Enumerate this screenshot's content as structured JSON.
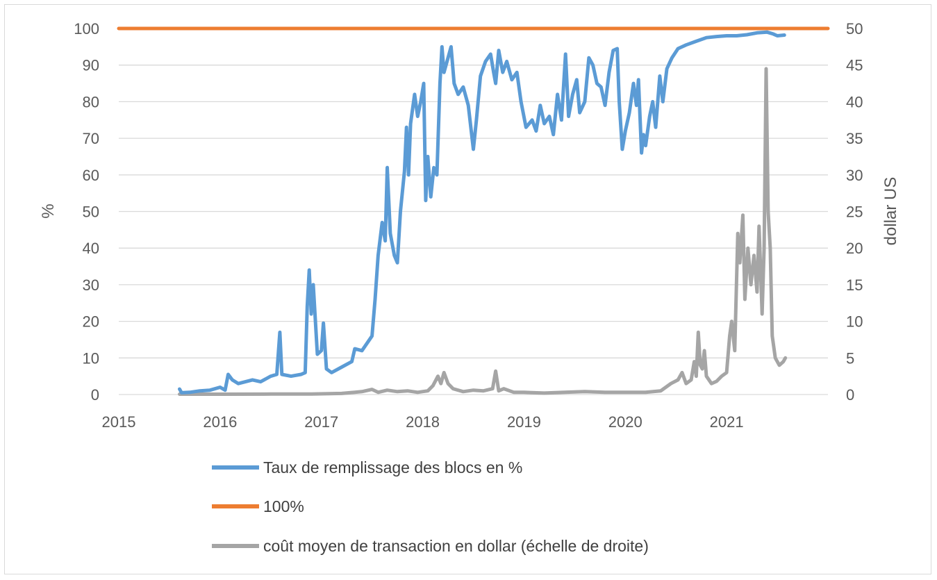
{
  "chart_data": {
    "type": "line",
    "xlim": [
      2015,
      2022
    ],
    "x_ticks": [
      "2015",
      "2016",
      "2017",
      "2018",
      "2019",
      "2020",
      "2021"
    ],
    "y_left": {
      "label": "%",
      "ylim": [
        0,
        100
      ],
      "ticks": [
        "0",
        "10",
        "20",
        "30",
        "40",
        "50",
        "60",
        "70",
        "80",
        "90",
        "100"
      ]
    },
    "y_right": {
      "label": "dollar US",
      "ylim": [
        0,
        50
      ],
      "ticks": [
        "0",
        "5",
        "10",
        "15",
        "20",
        "25",
        "30",
        "35",
        "40",
        "45",
        "50"
      ]
    },
    "grid": true,
    "legend_position": "bottom",
    "series": [
      {
        "name": "Taux de remplissage des blocs en %",
        "axis": "left",
        "color": "#5b9bd5",
        "points": [
          [
            2015.6,
            1.5
          ],
          [
            2015.62,
            0.5
          ],
          [
            2015.7,
            0.6
          ],
          [
            2015.8,
            1.0
          ],
          [
            2015.9,
            1.2
          ],
          [
            2016.0,
            2.0
          ],
          [
            2016.05,
            1.2
          ],
          [
            2016.08,
            5.5
          ],
          [
            2016.12,
            4.0
          ],
          [
            2016.18,
            3.0
          ],
          [
            2016.25,
            3.5
          ],
          [
            2016.32,
            4.0
          ],
          [
            2016.4,
            3.5
          ],
          [
            2016.5,
            5.0
          ],
          [
            2016.56,
            5.5
          ],
          [
            2016.59,
            17.0
          ],
          [
            2016.61,
            5.5
          ],
          [
            2016.7,
            5.0
          ],
          [
            2016.8,
            5.5
          ],
          [
            2016.84,
            6.0
          ],
          [
            2016.86,
            24.0
          ],
          [
            2016.88,
            34.0
          ],
          [
            2016.9,
            22.0
          ],
          [
            2016.92,
            30.0
          ],
          [
            2016.96,
            11.0
          ],
          [
            2017.0,
            12.0
          ],
          [
            2017.02,
            19.5
          ],
          [
            2017.05,
            7.0
          ],
          [
            2017.1,
            6.0
          ],
          [
            2017.2,
            7.5
          ],
          [
            2017.3,
            9.0
          ],
          [
            2017.33,
            12.5
          ],
          [
            2017.4,
            12.0
          ],
          [
            2017.5,
            16.0
          ],
          [
            2017.53,
            26.0
          ],
          [
            2017.56,
            38.0
          ],
          [
            2017.6,
            47.0
          ],
          [
            2017.63,
            42.0
          ],
          [
            2017.65,
            62.0
          ],
          [
            2017.68,
            44.0
          ],
          [
            2017.72,
            38.0
          ],
          [
            2017.75,
            36.0
          ],
          [
            2017.78,
            50.0
          ],
          [
            2017.82,
            61.0
          ],
          [
            2017.84,
            73.0
          ],
          [
            2017.86,
            60.0
          ],
          [
            2017.88,
            74.0
          ],
          [
            2017.92,
            82.0
          ],
          [
            2017.95,
            76.0
          ],
          [
            2017.98,
            80.0
          ],
          [
            2018.01,
            85.0
          ],
          [
            2018.03,
            53.0
          ],
          [
            2018.05,
            65.0
          ],
          [
            2018.08,
            54.0
          ],
          [
            2018.11,
            62.0
          ],
          [
            2018.14,
            60.0
          ],
          [
            2018.17,
            85.0
          ],
          [
            2018.19,
            95.0
          ],
          [
            2018.21,
            88.0
          ],
          [
            2018.24,
            91.0
          ],
          [
            2018.28,
            95.0
          ],
          [
            2018.31,
            85.0
          ],
          [
            2018.35,
            82.0
          ],
          [
            2018.4,
            84.0
          ],
          [
            2018.45,
            79.0
          ],
          [
            2018.5,
            67.0
          ],
          [
            2018.53,
            75.0
          ],
          [
            2018.57,
            87.0
          ],
          [
            2018.62,
            91.0
          ],
          [
            2018.67,
            93.0
          ],
          [
            2018.7,
            88.0
          ],
          [
            2018.72,
            85.0
          ],
          [
            2018.75,
            94.0
          ],
          [
            2018.79,
            88.0
          ],
          [
            2018.83,
            91.0
          ],
          [
            2018.88,
            86.0
          ],
          [
            2018.93,
            88.0
          ],
          [
            2018.97,
            80.0
          ],
          [
            2019.02,
            73.0
          ],
          [
            2019.08,
            75.0
          ],
          [
            2019.12,
            72.0
          ],
          [
            2019.16,
            79.0
          ],
          [
            2019.2,
            74.0
          ],
          [
            2019.25,
            76.0
          ],
          [
            2019.29,
            71.0
          ],
          [
            2019.33,
            82.0
          ],
          [
            2019.37,
            75.0
          ],
          [
            2019.41,
            93.0
          ],
          [
            2019.44,
            76.0
          ],
          [
            2019.48,
            82.0
          ],
          [
            2019.52,
            86.0
          ],
          [
            2019.55,
            77.0
          ],
          [
            2019.6,
            80.0
          ],
          [
            2019.64,
            92.0
          ],
          [
            2019.68,
            90.0
          ],
          [
            2019.72,
            85.0
          ],
          [
            2019.76,
            84.0
          ],
          [
            2019.8,
            79.0
          ],
          [
            2019.84,
            88.0
          ],
          [
            2019.88,
            94.0
          ],
          [
            2019.92,
            94.5
          ],
          [
            2019.94,
            80.0
          ],
          [
            2019.97,
            67.0
          ],
          [
            2020.0,
            72.0
          ],
          [
            2020.04,
            77.0
          ],
          [
            2020.08,
            85.0
          ],
          [
            2020.11,
            79.0
          ],
          [
            2020.13,
            86.0
          ],
          [
            2020.16,
            66.0
          ],
          [
            2020.18,
            71.0
          ],
          [
            2020.2,
            68.0
          ],
          [
            2020.24,
            76.0
          ],
          [
            2020.27,
            80.0
          ],
          [
            2020.3,
            73.0
          ],
          [
            2020.34,
            87.0
          ],
          [
            2020.37,
            80.0
          ],
          [
            2020.41,
            89.0
          ],
          [
            2020.46,
            92.0
          ],
          [
            2020.52,
            94.5
          ],
          [
            2020.6,
            95.5
          ],
          [
            2020.7,
            96.5
          ],
          [
            2020.8,
            97.5
          ],
          [
            2020.9,
            97.8
          ],
          [
            2021.0,
            98.0
          ],
          [
            2021.1,
            98.0
          ],
          [
            2021.2,
            98.3
          ],
          [
            2021.3,
            98.8
          ],
          [
            2021.4,
            99.0
          ],
          [
            2021.46,
            98.5
          ],
          [
            2021.5,
            98.0
          ],
          [
            2021.57,
            98.2
          ]
        ]
      },
      {
        "name": "100%",
        "axis": "left",
        "color": "#ed7d31",
        "points": [
          [
            2015.0,
            100
          ],
          [
            2022.0,
            100
          ]
        ]
      },
      {
        "name": "coût moyen de transaction en dollar (échelle de droite)",
        "axis": "right",
        "color": "#a5a5a5",
        "points": [
          [
            2015.6,
            0.05
          ],
          [
            2016.0,
            0.05
          ],
          [
            2016.5,
            0.07
          ],
          [
            2016.9,
            0.08
          ],
          [
            2017.2,
            0.15
          ],
          [
            2017.4,
            0.4
          ],
          [
            2017.5,
            0.7
          ],
          [
            2017.56,
            0.3
          ],
          [
            2017.65,
            0.6
          ],
          [
            2017.75,
            0.4
          ],
          [
            2017.85,
            0.5
          ],
          [
            2017.95,
            0.3
          ],
          [
            2018.05,
            0.5
          ],
          [
            2018.1,
            1.2
          ],
          [
            2018.15,
            2.5
          ],
          [
            2018.18,
            1.5
          ],
          [
            2018.21,
            3.0
          ],
          [
            2018.25,
            1.5
          ],
          [
            2018.3,
            0.8
          ],
          [
            2018.4,
            0.4
          ],
          [
            2018.5,
            0.6
          ],
          [
            2018.6,
            0.5
          ],
          [
            2018.69,
            0.8
          ],
          [
            2018.72,
            3.2
          ],
          [
            2018.75,
            0.5
          ],
          [
            2018.8,
            0.8
          ],
          [
            2018.9,
            0.3
          ],
          [
            2019.0,
            0.3
          ],
          [
            2019.2,
            0.2
          ],
          [
            2019.4,
            0.3
          ],
          [
            2019.6,
            0.4
          ],
          [
            2019.8,
            0.3
          ],
          [
            2020.0,
            0.3
          ],
          [
            2020.2,
            0.3
          ],
          [
            2020.35,
            0.5
          ],
          [
            2020.45,
            1.5
          ],
          [
            2020.52,
            2.0
          ],
          [
            2020.56,
            3.0
          ],
          [
            2020.6,
            1.5
          ],
          [
            2020.65,
            2.0
          ],
          [
            2020.68,
            4.5
          ],
          [
            2020.7,
            2.5
          ],
          [
            2020.72,
            8.5
          ],
          [
            2020.74,
            4.0
          ],
          [
            2020.76,
            3.5
          ],
          [
            2020.78,
            6.0
          ],
          [
            2020.8,
            2.5
          ],
          [
            2020.85,
            1.5
          ],
          [
            2020.9,
            1.8
          ],
          [
            2020.95,
            2.5
          ],
          [
            2021.0,
            3.0
          ],
          [
            2021.03,
            8.0
          ],
          [
            2021.05,
            10.0
          ],
          [
            2021.08,
            6.0
          ],
          [
            2021.11,
            22.0
          ],
          [
            2021.13,
            18.0
          ],
          [
            2021.16,
            24.5
          ],
          [
            2021.18,
            13.0
          ],
          [
            2021.21,
            20.0
          ],
          [
            2021.24,
            15.0
          ],
          [
            2021.27,
            19.0
          ],
          [
            2021.3,
            14.0
          ],
          [
            2021.32,
            23.0
          ],
          [
            2021.35,
            11.0
          ],
          [
            2021.37,
            20.0
          ],
          [
            2021.39,
            44.5
          ],
          [
            2021.41,
            25.0
          ],
          [
            2021.43,
            20.0
          ],
          [
            2021.45,
            8.0
          ],
          [
            2021.48,
            5.0
          ],
          [
            2021.52,
            4.0
          ],
          [
            2021.56,
            4.5
          ],
          [
            2021.58,
            5.0
          ]
        ]
      }
    ]
  }
}
